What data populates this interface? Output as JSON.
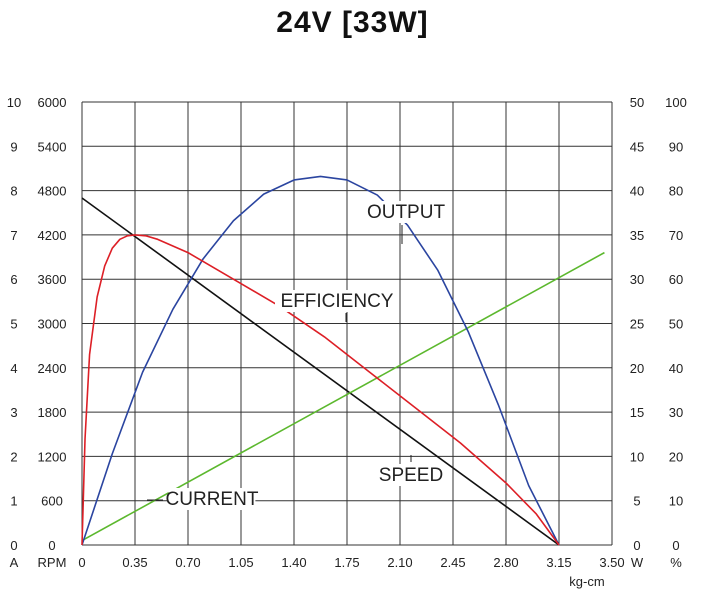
{
  "title": "24V [33W]",
  "chart_data": {
    "type": "line",
    "title": "24V [33W]",
    "xlabel": "kg-cm",
    "x_ticks": [
      "0",
      "0.35",
      "0.70",
      "1.05",
      "1.40",
      "1.75",
      "2.10",
      "2.45",
      "2.80",
      "3.15",
      "3.50"
    ],
    "xlim": [
      0,
      3.5
    ],
    "axes": {
      "left_current": {
        "unit": "A",
        "ticks": [
          "0",
          "1",
          "2",
          "3",
          "4",
          "5",
          "6",
          "7",
          "8",
          "9",
          "10"
        ],
        "range": [
          0,
          10
        ]
      },
      "left_speed": {
        "unit": "RPM",
        "ticks": [
          "0",
          "600",
          "1200",
          "1800",
          "2400",
          "3000",
          "3600",
          "4200",
          "4800",
          "5400",
          "6000"
        ],
        "range": [
          0,
          6000
        ]
      },
      "right_output": {
        "unit": "W",
        "ticks": [
          "0",
          "5",
          "10",
          "15",
          "20",
          "25",
          "30",
          "35",
          "40",
          "45",
          "50"
        ],
        "range": [
          0,
          50
        ]
      },
      "right_efficiency": {
        "unit": "%",
        "ticks": [
          "0",
          "10",
          "20",
          "30",
          "40",
          "50",
          "60",
          "70",
          "80",
          "90",
          "100"
        ],
        "range": [
          0,
          100
        ]
      }
    },
    "grid": true,
    "series": [
      {
        "name": "SPEED",
        "axis": "left_speed",
        "color": "#111111",
        "x": [
          0,
          3.15
        ],
        "y": [
          4700,
          0
        ]
      },
      {
        "name": "CURRENT",
        "axis": "left_current",
        "color": "#5cb82e",
        "x": [
          0,
          3.45
        ],
        "y": [
          0.1,
          6.6
        ]
      },
      {
        "name": "OUTPUT",
        "axis": "right_output",
        "color": "#2b45a0",
        "x": [
          0,
          0.2,
          0.4,
          0.6,
          0.8,
          1.0,
          1.2,
          1.4,
          1.575,
          1.75,
          1.95,
          2.15,
          2.35,
          2.55,
          2.75,
          2.95,
          3.15
        ],
        "y": [
          0,
          10.3,
          19.5,
          26.6,
          32.3,
          36.6,
          39.6,
          41.2,
          41.6,
          41.2,
          39.5,
          36.1,
          31.0,
          24.1,
          15.8,
          6.7,
          0
        ]
      },
      {
        "name": "EFFICIENCY",
        "axis": "right_efficiency",
        "color": "#dd1f26",
        "x": [
          0,
          0.02,
          0.05,
          0.1,
          0.15,
          0.2,
          0.25,
          0.3,
          0.35,
          0.42,
          0.5,
          0.7,
          1.0,
          1.3,
          1.6,
          1.9,
          2.2,
          2.5,
          2.8,
          3.0,
          3.15
        ],
        "y": [
          0,
          24,
          43,
          56,
          63,
          67,
          69,
          69.8,
          70,
          69.8,
          69,
          66,
          60,
          54,
          47,
          39,
          31,
          23,
          14,
          7,
          0
        ]
      }
    ],
    "annotations": [
      "OUTPUT",
      "EFFICIENCY",
      "SPEED",
      "CURRENT"
    ]
  }
}
